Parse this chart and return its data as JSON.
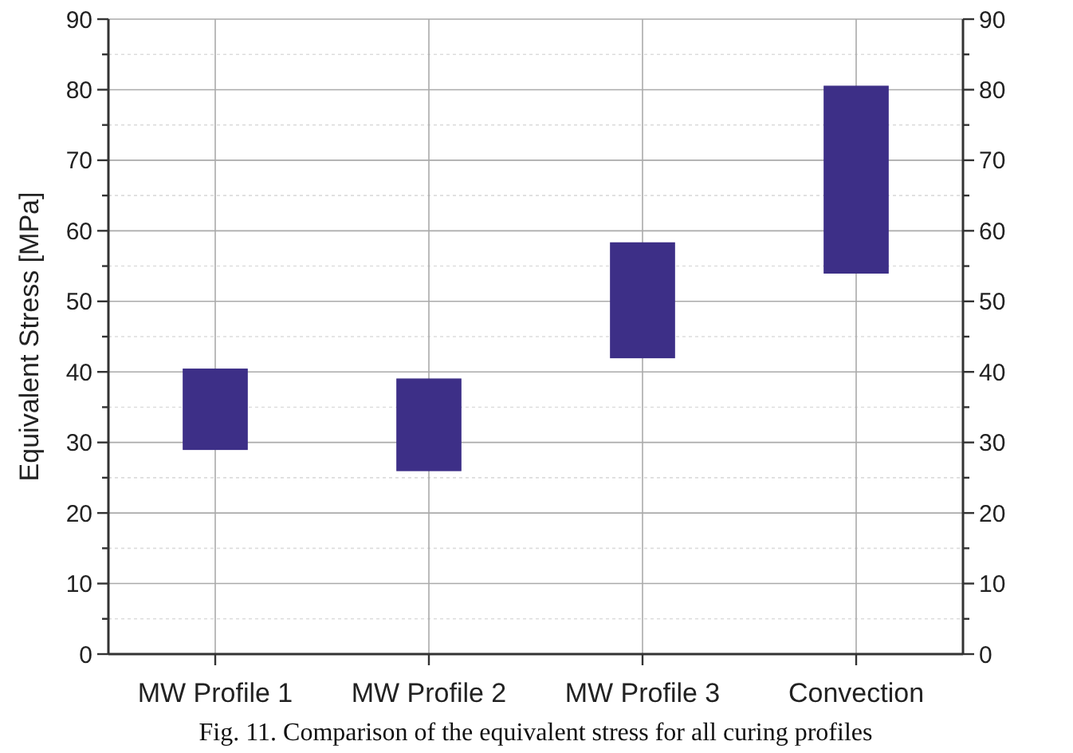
{
  "chart_data": {
    "type": "bar",
    "ylabel": "Equivalent Stress [MPa]",
    "categories": [
      "MW Profile 1",
      "MW Profile 2",
      "MW Profile 3",
      "Convection"
    ],
    "base": [
      29,
      26,
      42,
      54
    ],
    "values": [
      11.4,
      13,
      16.3,
      26.5
    ],
    "color": "#3d2f87",
    "ylim": [
      0,
      90
    ],
    "yticks": [
      0,
      {
        "value": 5,
        "label": null
      },
      10,
      {
        "value": 15,
        "label": null
      },
      20,
      {
        "value": 25,
        "label": null
      },
      30,
      {
        "value": 35,
        "label": null
      },
      40,
      {
        "value": 45,
        "label": null
      },
      50,
      {
        "value": 55,
        "label": null
      },
      60,
      {
        "value": 65,
        "label": null
      },
      70,
      {
        "value": 75,
        "label": null
      },
      80,
      {
        "value": 85,
        "label": null
      },
      90
    ],
    "y2lim": [
      0,
      90
    ],
    "y2ticks": [
      0,
      {
        "value": 5,
        "label": null
      },
      10,
      {
        "value": 15,
        "label": null
      },
      20,
      {
        "value": 25,
        "label": null
      },
      30,
      {
        "value": 35,
        "label": null
      },
      40,
      {
        "value": 45,
        "label": null
      },
      50,
      {
        "value": 55,
        "label": null
      },
      60,
      {
        "value": 65,
        "label": null
      },
      70,
      {
        "value": 75,
        "label": null
      },
      80,
      {
        "value": 85,
        "label": null
      },
      90
    ],
    "grid": true,
    "annotations": [
      "Fig. 11. Comparison of the equivalent stress for all curing profiles"
    ]
  }
}
